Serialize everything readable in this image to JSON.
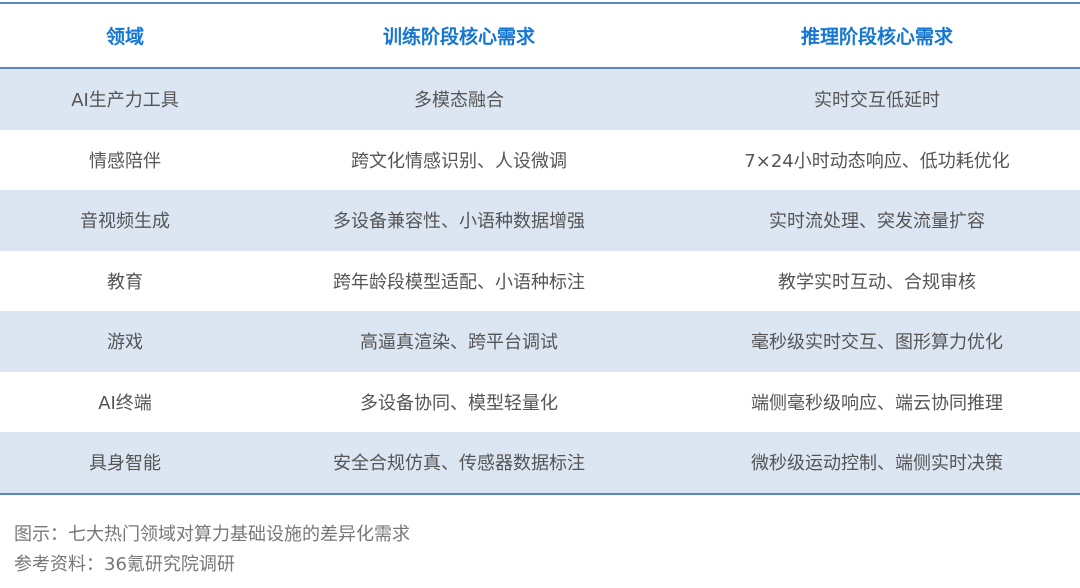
{
  "table": {
    "headers": [
      "领域",
      "训练阶段核心需求",
      "推理阶段核心需求"
    ],
    "rows": [
      [
        "AI生产力工具",
        "多模态融合",
        "实时交互低延时"
      ],
      [
        "情感陪伴",
        "跨文化情感识别、人设微调",
        "7×24小时动态响应、低功耗优化"
      ],
      [
        "音视频生成",
        "多设备兼容性、小语种数据增强",
        "实时流处理、突发流量扩容"
      ],
      [
        "教育",
        "跨年龄段模型适配、小语种标注",
        "教学实时互动、合规审核"
      ],
      [
        "游戏",
        "高逼真渲染、跨平台调试",
        "毫秒级实时交互、图形算力优化"
      ],
      [
        "AI终端",
        "多设备协同、模型轻量化",
        "端侧毫秒级响应、端云协同推理"
      ],
      [
        "具身智能",
        "安全合规仿真、传感器数据标注",
        "微秒级运动控制、端侧实时决策"
      ]
    ]
  },
  "caption": "图示：七大热门领域对算力基础设施的差异化需求",
  "source": "参考资料：36氪研究院调研",
  "colors": {
    "header_text": "#1677d2",
    "border": "#5b87c5",
    "stripe": "#dce6f2"
  }
}
